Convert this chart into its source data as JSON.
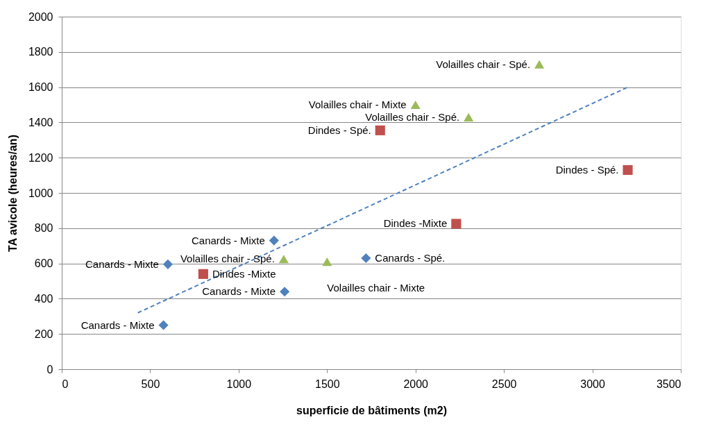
{
  "chart_data": {
    "type": "scatter",
    "xlabel": "superficie de bâtiments (m2)",
    "ylabel": "TA avicole (heures/an)",
    "xlim": [
      0,
      3500
    ],
    "xticks": [
      0,
      500,
      1000,
      1500,
      2000,
      2500,
      3000,
      3500
    ],
    "ylim": [
      0,
      2000
    ],
    "yticks": [
      0,
      200,
      400,
      600,
      800,
      1000,
      1200,
      1400,
      1600,
      1800,
      2000
    ],
    "grid": "y",
    "series": [
      {
        "type": "scatter",
        "marker": "diamond",
        "color": "#4f81bd",
        "x": [
          575,
          600,
          1200,
          1260,
          1720
        ],
        "values": [
          250,
          595,
          730,
          440,
          630
        ],
        "value_labels": [
          "Canards - Mixte",
          "Canards - Mixte",
          "Canards - Mixte",
          "Canards - Mixte",
          "Canards - Spé."
        ]
      },
      {
        "type": "scatter",
        "marker": "square",
        "color": "#c0504d",
        "x": [
          800,
          1800,
          2230,
          3200
        ],
        "values": [
          540,
          1355,
          825,
          1130
        ],
        "value_labels": [
          "Dindes -Mixte",
          "Dindes - Spé.",
          "Dindes -Mixte",
          "Dindes - Spé."
        ]
      },
      {
        "type": "scatter",
        "marker": "triangle",
        "color": "#9bbb59",
        "x": [
          1255,
          1500,
          2000,
          2300,
          2700
        ],
        "values": [
          625,
          610,
          1500,
          1430,
          1730
        ],
        "value_labels": [
          "Volailles chair - Spé.",
          "Volailles chair - Mixte",
          "Volailles chair - Mixte",
          "Volailles chair - Spé.",
          "Volailles chair - Spé."
        ]
      },
      {
        "type": "line",
        "line_style": "dashed",
        "marker": "none",
        "color": "#4f81bd",
        "x": [
          430,
          3200
        ],
        "values": [
          320,
          1600
        ]
      }
    ]
  }
}
